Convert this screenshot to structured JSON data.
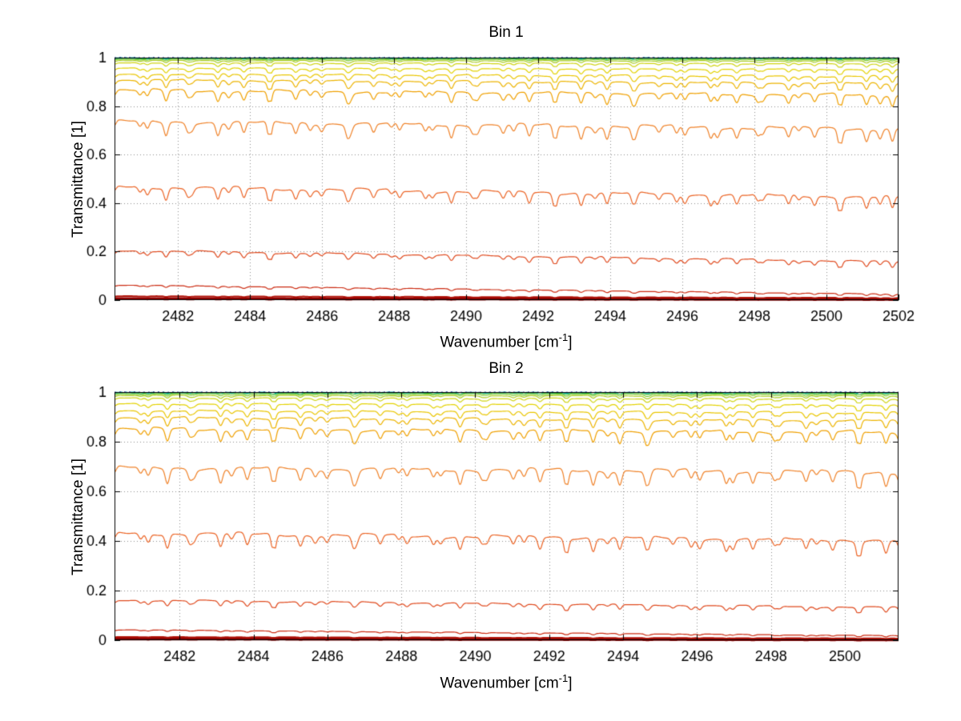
{
  "figure": {
    "background": "#ffffff"
  },
  "chart_data": [
    {
      "type": "line",
      "title": "Bin 1",
      "xlabel": {
        "prefix": "Wavenumber [cm",
        "sup": "-1",
        "suffix": "]"
      },
      "ylabel": "Transmittance [1]",
      "xlim": [
        2480.24,
        2502
      ],
      "ylim": [
        0,
        1
      ],
      "xticks": [
        2482,
        2484,
        2486,
        2488,
        2490,
        2492,
        2494,
        2496,
        2498,
        2500,
        2502
      ],
      "yticks": [
        0,
        0.2,
        0.4,
        0.6,
        0.8,
        1
      ],
      "grid": true,
      "legend": false,
      "absorption_comb": {
        "period": 0.72,
        "phase": 2480.95,
        "sigma": 0.055,
        "period2": 1.13,
        "phase2": 2481.15,
        "secondary_scale": 0.7
      },
      "series": [
        {
          "color": "#203fa0",
          "left": 0.9998,
          "right": 0.9998,
          "dip": 0.001,
          "width": 1.4,
          "dash": [
            2,
            4
          ]
        },
        {
          "color": "#00b4b4",
          "left": 0.9985,
          "right": 0.9985,
          "dip": 0.002,
          "width": 1.6,
          "dash": [
            10,
            4,
            2,
            4
          ]
        },
        {
          "color": "#2db82d",
          "left": 0.9972,
          "right": 0.9962,
          "dip": 0.004,
          "width": 1.2,
          "dash": []
        },
        {
          "color": "#7ec832",
          "left": 0.9935,
          "right": 0.992,
          "dip": 0.006,
          "width": 1.2,
          "dash": []
        },
        {
          "color": "#aacc22",
          "left": 0.988,
          "right": 0.986,
          "dip": 0.009,
          "width": 1.2,
          "dash": []
        },
        {
          "color": "#cfd411",
          "left": 0.9775,
          "right": 0.9745,
          "dip": 0.013,
          "width": 1.2,
          "dash": []
        },
        {
          "color": "#e3d200",
          "left": 0.956,
          "right": 0.951,
          "dip": 0.018,
          "width": 1.2,
          "dash": []
        },
        {
          "color": "#eac600",
          "left": 0.932,
          "right": 0.922,
          "dip": 0.025,
          "width": 1.2,
          "dash": []
        },
        {
          "color": "#edb400",
          "left": 0.908,
          "right": 0.893,
          "dip": 0.032,
          "width": 1.2,
          "dash": []
        },
        {
          "color": "#f0a000",
          "left": 0.866,
          "right": 0.845,
          "dip": 0.045,
          "width": 1.2,
          "dash": []
        },
        {
          "color": "#f08228",
          "left": 0.737,
          "right": 0.706,
          "dip": 0.055,
          "width": 1.2,
          "dash": []
        },
        {
          "color": "#ec6425",
          "left": 0.468,
          "right": 0.424,
          "dip": 0.05,
          "width": 1.2,
          "dash": []
        },
        {
          "color": "#e04a1e",
          "left": 0.205,
          "right": 0.158,
          "dip": 0.025,
          "width": 1.2,
          "dash": []
        },
        {
          "color": "#cc2a10",
          "left": 0.062,
          "right": 0.024,
          "dip": 0.008,
          "width": 1.2,
          "dash": []
        },
        {
          "color": "#b01208",
          "left": 0.016,
          "right": 0.009,
          "dip": 0.003,
          "width": 2.0,
          "dash": []
        },
        {
          "color": "#8f0000",
          "left": 0.006,
          "right": 0.003,
          "dip": 0.001,
          "width": 3.5,
          "dash": []
        }
      ]
    },
    {
      "type": "line",
      "title": "Bin 2",
      "xlabel": {
        "prefix": "Wavenumber [cm",
        "sup": "-1",
        "suffix": "]"
      },
      "ylabel": "Transmittance [1]",
      "xlim": [
        2480.24,
        2501.45
      ],
      "ylim": [
        0,
        1
      ],
      "xticks": [
        2482,
        2484,
        2486,
        2488,
        2490,
        2492,
        2494,
        2496,
        2498,
        2500
      ],
      "yticks": [
        0,
        0.2,
        0.4,
        0.6,
        0.8,
        1
      ],
      "grid": true,
      "legend": false,
      "absorption_comb": {
        "period": 0.72,
        "phase": 2480.95,
        "sigma": 0.055,
        "period2": 1.13,
        "phase2": 2481.15,
        "secondary_scale": 0.7
      },
      "series": [
        {
          "color": "#203fa0",
          "left": 0.9998,
          "right": 0.9998,
          "dip": 0.001,
          "width": 1.4,
          "dash": [
            2,
            4
          ]
        },
        {
          "color": "#00b4b4",
          "left": 0.9985,
          "right": 0.9985,
          "dip": 0.002,
          "width": 1.6,
          "dash": [
            10,
            4,
            2,
            4
          ]
        },
        {
          "color": "#2db82d",
          "left": 0.997,
          "right": 0.996,
          "dip": 0.005,
          "width": 1.2,
          "dash": []
        },
        {
          "color": "#7ec832",
          "left": 0.9925,
          "right": 0.991,
          "dip": 0.008,
          "width": 1.2,
          "dash": []
        },
        {
          "color": "#aacc22",
          "left": 0.9865,
          "right": 0.9845,
          "dip": 0.011,
          "width": 1.2,
          "dash": []
        },
        {
          "color": "#cfd411",
          "left": 0.9755,
          "right": 0.9725,
          "dip": 0.015,
          "width": 1.2,
          "dash": []
        },
        {
          "color": "#e3d200",
          "left": 0.9525,
          "right": 0.9475,
          "dip": 0.021,
          "width": 1.2,
          "dash": []
        },
        {
          "color": "#eac600",
          "left": 0.9255,
          "right": 0.9165,
          "dip": 0.028,
          "width": 1.2,
          "dash": []
        },
        {
          "color": "#edb400",
          "left": 0.898,
          "right": 0.884,
          "dip": 0.036,
          "width": 1.2,
          "dash": []
        },
        {
          "color": "#f0a000",
          "left": 0.852,
          "right": 0.838,
          "dip": 0.05,
          "width": 1.2,
          "dash": []
        },
        {
          "color": "#f08228",
          "left": 0.695,
          "right": 0.678,
          "dip": 0.06,
          "width": 1.2,
          "dash": []
        },
        {
          "color": "#ec6425",
          "left": 0.432,
          "right": 0.402,
          "dip": 0.055,
          "width": 1.2,
          "dash": []
        },
        {
          "color": "#e04a1e",
          "left": 0.162,
          "right": 0.132,
          "dip": 0.022,
          "width": 1.2,
          "dash": []
        },
        {
          "color": "#cc2a10",
          "left": 0.042,
          "right": 0.018,
          "dip": 0.006,
          "width": 1.2,
          "dash": []
        },
        {
          "color": "#b01208",
          "left": 0.013,
          "right": 0.007,
          "dip": 0.002,
          "width": 2.0,
          "dash": []
        },
        {
          "color": "#8f0000",
          "left": 0.005,
          "right": 0.002,
          "dip": 0.001,
          "width": 3.5,
          "dash": []
        }
      ]
    }
  ]
}
